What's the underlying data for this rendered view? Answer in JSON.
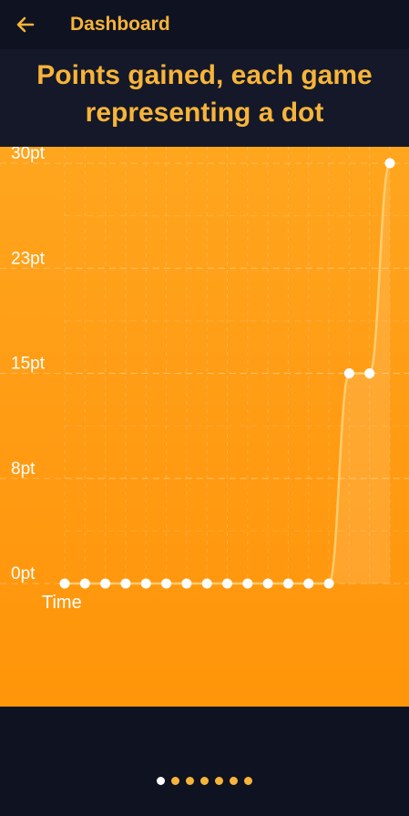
{
  "topbar": {
    "back_icon": "arrow-left-icon",
    "title": "Dashboard"
  },
  "header": {
    "title": "Points gained, each game representing a dot"
  },
  "chart_data": {
    "type": "line",
    "title": "Points gained, each game representing a dot",
    "xlabel": "Time",
    "ylabel": "",
    "ylim": [
      0,
      30
    ],
    "y_ticks": [
      {
        "value": 0,
        "label": "0pt"
      },
      {
        "value": 7.5,
        "label": "8pt"
      },
      {
        "value": 15,
        "label": "15pt"
      },
      {
        "value": 22.5,
        "label": "23pt"
      },
      {
        "value": 30,
        "label": "30pt"
      }
    ],
    "values": [
      0,
      0,
      0,
      0,
      0,
      0,
      0,
      0,
      0,
      0,
      0,
      0,
      0,
      0,
      15,
      15,
      30
    ],
    "grid": true,
    "colors": {
      "background_top": "#ffa51e",
      "background_bottom": "#ff9509",
      "line": "#ffd47a",
      "dot": "#ffffff"
    }
  },
  "pager": {
    "count": 7,
    "active_index": 0
  },
  "colors": {
    "accent": "#f7b43a",
    "background": "#0f1220"
  }
}
